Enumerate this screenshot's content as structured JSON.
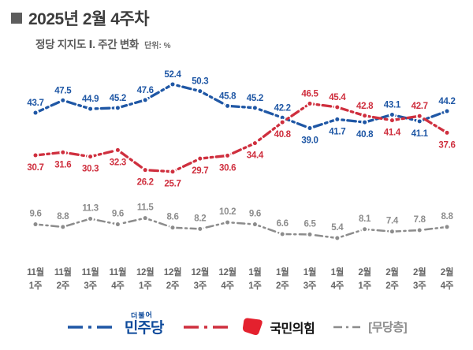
{
  "header": {
    "title": "2025년 2월 4주차",
    "subtitle": "정당 지지도 Ⅰ. 주간 변화",
    "unit_label": "단위: %"
  },
  "chart_data": {
    "type": "line",
    "title": "정당 지지도 주간 변화",
    "unit": "%",
    "grid": false,
    "legend_position": "bottom",
    "ylim": [
      0,
      60
    ],
    "categories": [
      "11월 1주",
      "11월 2주",
      "11월 3주",
      "11월 4주",
      "12월 1주",
      "12월 2주",
      "12월 3주",
      "12월 4주",
      "1월 1주",
      "1월 2주",
      "1월 3주",
      "1월 4주",
      "2월 1주",
      "2월 2주",
      "2월 3주",
      "2월 4주"
    ],
    "series": [
      {
        "name": "민주당",
        "color": "#1f57a5",
        "values": [
          43.7,
          47.5,
          44.9,
          45.2,
          47.6,
          52.4,
          50.3,
          45.8,
          45.2,
          42.2,
          39.0,
          41.7,
          40.8,
          43.1,
          41.1,
          44.2
        ],
        "labels": [
          "43.7",
          "47.5",
          "44.9",
          "45.2",
          "47.6",
          "52.4",
          "50.3",
          "45.8",
          "45.2",
          "42.2",
          "39.0",
          "41.7",
          "40.8",
          "43.1",
          "41.1",
          "44.2"
        ],
        "label_pos": [
          "a",
          "a",
          "a",
          "a",
          "a",
          "a",
          "a",
          "a",
          "a",
          "a",
          "b",
          "b",
          "b",
          "a",
          "b",
          "a"
        ]
      },
      {
        "name": "국민의힘",
        "color": "#cf2f3e",
        "values": [
          30.7,
          31.6,
          30.3,
          32.3,
          26.2,
          25.7,
          29.7,
          30.6,
          34.4,
          40.8,
          46.5,
          45.4,
          42.8,
          41.4,
          42.7,
          37.6
        ],
        "labels": [
          "30.7",
          "31.6",
          "30.3",
          "32.3",
          "26.2",
          "25.7",
          "29.7",
          "30.6",
          "34.4",
          "40.8",
          "46.5",
          "45.4",
          "42.8",
          "41.4",
          "42.7",
          "37.6"
        ],
        "label_pos": [
          "b",
          "b",
          "b",
          "b",
          "b",
          "b",
          "b",
          "b",
          "b",
          "b",
          "a",
          "a",
          "a",
          "b",
          "a",
          "b"
        ]
      },
      {
        "name": "무당층",
        "color": "#8c8c8c",
        "values": [
          9.6,
          8.8,
          11.3,
          9.6,
          11.5,
          8.6,
          8.2,
          10.2,
          9.6,
          6.6,
          6.5,
          5.4,
          8.1,
          7.4,
          7.8,
          8.8
        ],
        "labels": [
          "9.6",
          "8.8",
          "11.3",
          "9.6",
          "11.5",
          "8.6",
          "8.2",
          "10.2",
          "9.6",
          "6.6",
          "6.5",
          "5.4",
          "8.1",
          "7.4",
          "7.8",
          "8.8"
        ],
        "label_pos": [
          "a",
          "a",
          "a",
          "a",
          "a",
          "a",
          "a",
          "a",
          "a",
          "a",
          "a",
          "a",
          "a",
          "a",
          "a",
          "a"
        ]
      }
    ]
  },
  "legend": {
    "party1": {
      "sub": "더불어",
      "label": "민주당",
      "color": "#0d4a9b",
      "line_color": "#1f57a5"
    },
    "party2": {
      "label": "국민의힘",
      "color": "#e4212e",
      "line_color": "#cf2f3e"
    },
    "party3": {
      "label": "[무당층]",
      "color": "#8c8c8c",
      "line_color": "#8c8c8c"
    }
  }
}
